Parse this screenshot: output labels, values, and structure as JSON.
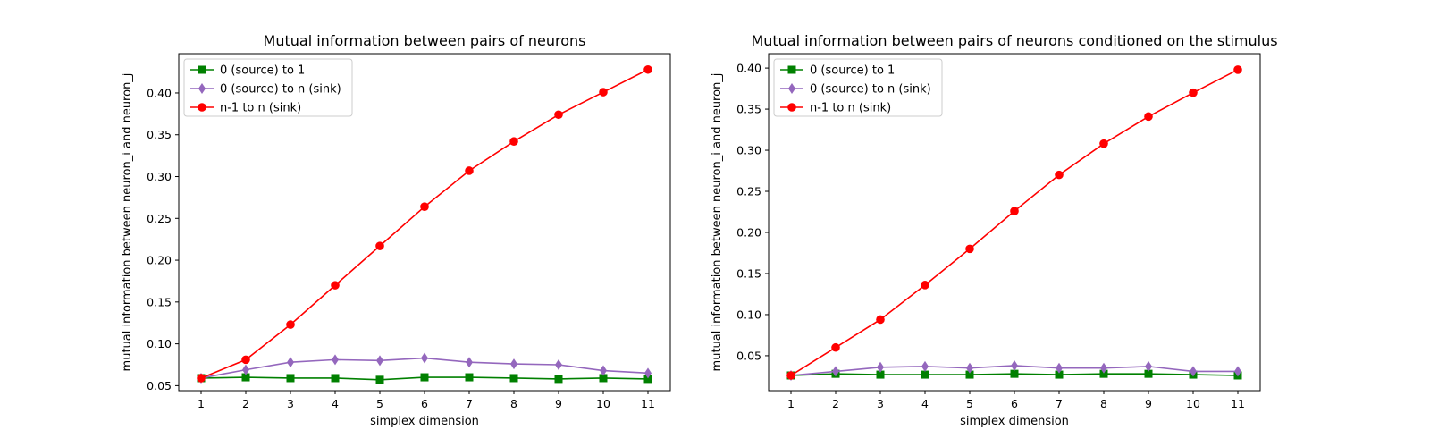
{
  "chart_data": [
    {
      "type": "line",
      "title": "Mutual information between pairs of neurons",
      "xlabel": "simplex dimension",
      "ylabel": "mutual information between neuron_i and neuron_j",
      "x": [
        1,
        2,
        3,
        4,
        5,
        6,
        7,
        8,
        9,
        10,
        11
      ],
      "xlim": [
        0.5,
        11.5
      ],
      "ylim": [
        0.044,
        0.447
      ],
      "yticks": [
        "0.05",
        "0.10",
        "0.15",
        "0.20",
        "0.25",
        "0.30",
        "0.35",
        "0.40"
      ],
      "legend_position": "top-left",
      "grid": false,
      "series": [
        {
          "name": "0 (source) to 1",
          "color": "#008000",
          "marker": "square",
          "values": [
            0.059,
            0.06,
            0.059,
            0.059,
            0.057,
            0.06,
            0.06,
            0.059,
            0.058,
            0.059,
            0.058
          ]
        },
        {
          "name": "0 (source) to n (sink)",
          "color": "#9467bd",
          "marker": "diamond",
          "values": [
            0.059,
            0.069,
            0.078,
            0.081,
            0.08,
            0.083,
            0.078,
            0.076,
            0.075,
            0.068,
            0.065
          ]
        },
        {
          "name": "n-1 to n (sink)",
          "color": "#ff0000",
          "marker": "circle",
          "values": [
            0.059,
            0.081,
            0.123,
            0.17,
            0.217,
            0.264,
            0.307,
            0.342,
            0.374,
            0.401,
            0.428
          ]
        }
      ]
    },
    {
      "type": "line",
      "title": "Mutual information between pairs of neurons conditioned on the stimulus",
      "xlabel": "simplex dimension",
      "ylabel": "mutual information between neuron_i and neuron_j",
      "x": [
        1,
        2,
        3,
        4,
        5,
        6,
        7,
        8,
        9,
        10,
        11
      ],
      "xlim": [
        0.5,
        11.5
      ],
      "ylim": [
        0.0075,
        0.4175
      ],
      "yticks": [
        "0.05",
        "0.10",
        "0.15",
        "0.20",
        "0.25",
        "0.30",
        "0.35",
        "0.40"
      ],
      "legend_position": "top-left",
      "grid": false,
      "series": [
        {
          "name": "0 (source) to 1",
          "color": "#008000",
          "marker": "square",
          "values": [
            0.026,
            0.028,
            0.027,
            0.027,
            0.027,
            0.028,
            0.027,
            0.028,
            0.028,
            0.027,
            0.026
          ]
        },
        {
          "name": "0 (source) to n (sink)",
          "color": "#9467bd",
          "marker": "diamond",
          "values": [
            0.026,
            0.031,
            0.036,
            0.037,
            0.035,
            0.038,
            0.035,
            0.035,
            0.037,
            0.031,
            0.031
          ]
        },
        {
          "name": "n-1 to n (sink)",
          "color": "#ff0000",
          "marker": "circle",
          "values": [
            0.026,
            0.06,
            0.094,
            0.136,
            0.18,
            0.226,
            0.27,
            0.308,
            0.341,
            0.37,
            0.398
          ]
        }
      ]
    }
  ]
}
